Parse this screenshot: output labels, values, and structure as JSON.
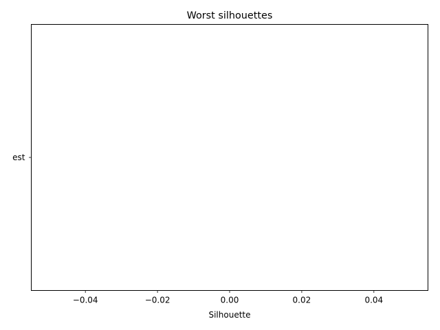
{
  "chart_data": {
    "type": "bar",
    "orientation": "horizontal",
    "title": "Worst silhouettes",
    "xlabel": "Silhouette",
    "ylabel": "",
    "categories": [
      "est"
    ],
    "values": [
      0
    ],
    "xlim": [
      -0.055,
      0.055
    ],
    "xticks": [
      -0.04,
      -0.02,
      0.0,
      0.02,
      0.04
    ],
    "xtick_labels": [
      "−0.04",
      "−0.02",
      "0.00",
      "0.02",
      "0.04"
    ],
    "grid": false
  }
}
